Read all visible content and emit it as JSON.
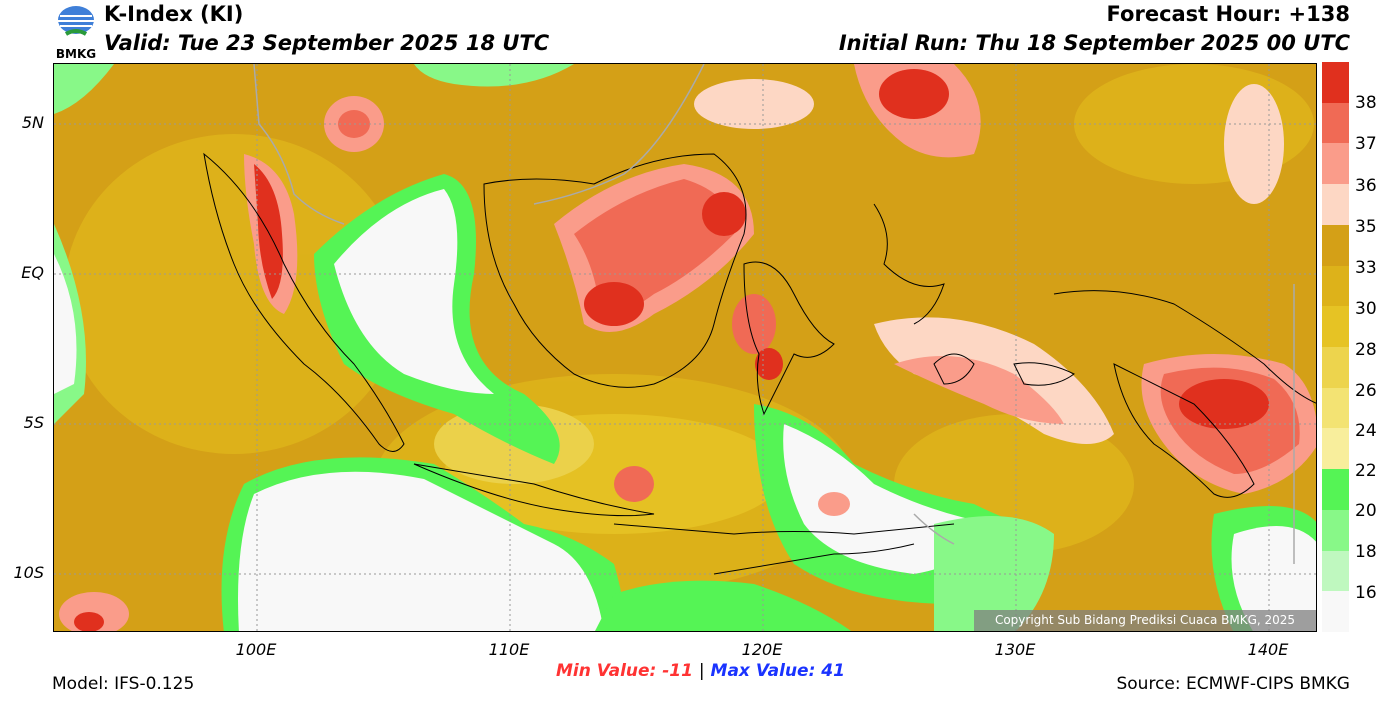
{
  "header": {
    "title": "K-Index (KI)",
    "valid": "Valid: Tue 23 September 2025 18 UTC",
    "forecast_hour": "Forecast Hour: +138",
    "initial_run": "Initial Run: Thu 18 September 2025 00 UTC",
    "logo_text": "BMKG"
  },
  "map": {
    "lat_labels": [
      "5N",
      "EQ",
      "5S",
      "10S"
    ],
    "lon_labels": [
      "100E",
      "110E",
      "120E",
      "130E",
      "140E"
    ],
    "copyright": "Copyright Sub Bidang Prediksi Cuaca BMKG, 2025"
  },
  "colorbar": {
    "labels": [
      "38",
      "37",
      "36",
      "35",
      "33",
      "30",
      "28",
      "26",
      "24",
      "22",
      "20",
      "18",
      "16"
    ],
    "colors": [
      "#e0301e",
      "#f06a55",
      "#fa9c8a",
      "#fdd7c4",
      "#d4a017",
      "#ddb21a",
      "#e6c324",
      "#edd44d",
      "#f3e373",
      "#f8ee9c",
      "#55f455",
      "#88f888",
      "#bff8bf",
      "#f8f8f8"
    ]
  },
  "footer": {
    "model": "Model: IFS-0.125",
    "source": "Source: ECMWF-CIPS BMKG",
    "min_label": "Min Value: -11",
    "separator": "|",
    "max_label": "Max Value:  41"
  }
}
